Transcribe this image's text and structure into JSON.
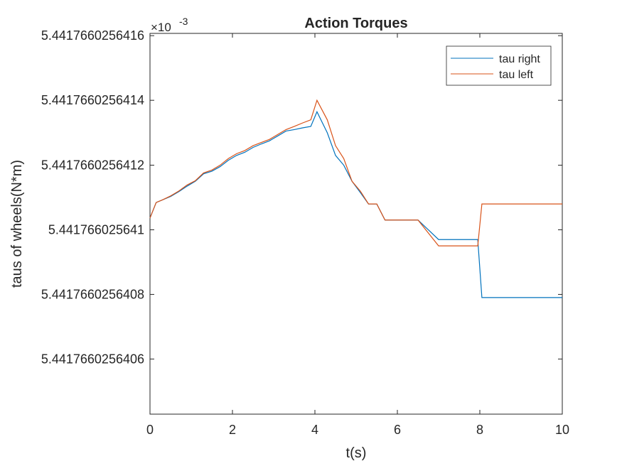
{
  "chart_data": {
    "type": "line",
    "title": "Action Torques",
    "xlabel": "t(s)",
    "ylabel": "taus of wheels(N*m)",
    "exponent_label": "×10",
    "exponent_power": "-3",
    "xlim": [
      0,
      10
    ],
    "xticks": [
      0,
      2,
      4,
      6,
      8,
      10
    ],
    "xtick_labels": [
      "0",
      "2",
      "4",
      "6",
      "8",
      "10"
    ],
    "ylim": [
      5.44176602564043,
      5.441766025641607
    ],
    "yticks": [
      5.4417660256406,
      5.4417660256408,
      5.441766025641,
      5.4417660256412,
      5.4417660256414,
      5.4417660256416
    ],
    "ytick_labels": [
      "5.4417660256406",
      "5.4417660256408",
      "5.441766025641",
      "5.4417660256412",
      "5.4417660256414",
      "5.4417660256416"
    ],
    "grid": false,
    "legend_position": "top-right",
    "series": [
      {
        "name": "tau right",
        "color": "#0072BD",
        "x": [
          0,
          0.15,
          0.3,
          0.5,
          0.7,
          0.9,
          1.1,
          1.3,
          1.5,
          1.7,
          1.9,
          2.1,
          2.3,
          2.5,
          2.7,
          2.9,
          3.1,
          3.3,
          3.5,
          3.7,
          3.9,
          4.05,
          4.3,
          4.5,
          4.7,
          4.9,
          5.1,
          5.3,
          5.5,
          5.7,
          6.0,
          6.5,
          7.0,
          7.5,
          7.95,
          8.05,
          8.5,
          9.0,
          9.5,
          10.0
        ],
        "y": [
          5.441766025641036,
          5.441766025641084,
          5.441766025641092,
          5.441766025641103,
          5.441766025641118,
          5.441766025641135,
          5.44176602564115,
          5.441766025641173,
          5.441766025641181,
          5.441766025641195,
          5.441766025641215,
          5.44176602564123,
          5.44176602564124,
          5.441766025641255,
          5.441766025641265,
          5.441766025641275,
          5.44176602564129,
          5.441766025641305,
          5.44176602564131,
          5.441766025641315,
          5.44176602564132,
          5.441766025641365,
          5.4417660256413,
          5.44176602564123,
          5.4417660256412,
          5.44176602564115,
          5.441766025641115,
          5.44176602564108,
          5.44176602564108,
          5.44176602564103,
          5.44176602564103,
          5.44176602564103,
          5.44176602564097,
          5.44176602564097,
          5.44176602564097,
          5.44176602564079,
          5.44176602564079,
          5.44176602564079,
          5.44176602564079,
          5.44176602564079
        ]
      },
      {
        "name": "tau left",
        "color": "#D95319",
        "x": [
          0,
          0.15,
          0.3,
          0.5,
          0.7,
          0.9,
          1.1,
          1.3,
          1.5,
          1.7,
          1.9,
          2.1,
          2.3,
          2.5,
          2.7,
          2.9,
          3.1,
          3.3,
          3.5,
          3.7,
          3.9,
          4.05,
          4.3,
          4.5,
          4.7,
          4.9,
          5.1,
          5.3,
          5.5,
          5.7,
          6.0,
          6.5,
          7.0,
          7.5,
          7.95,
          8.05,
          8.5,
          9.0,
          9.5,
          10.0
        ],
        "y": [
          5.441766025641036,
          5.441766025641084,
          5.441766025641092,
          5.441766025641105,
          5.44176602564112,
          5.441766025641138,
          5.441766025641152,
          5.441766025641176,
          5.441766025641185,
          5.4417660256412,
          5.44176602564122,
          5.441766025641235,
          5.441766025641245,
          5.44176602564126,
          5.44176602564127,
          5.44176602564128,
          5.441766025641295,
          5.44176602564131,
          5.44176602564132,
          5.44176602564133,
          5.44176602564134,
          5.4417660256414,
          5.44176602564134,
          5.44176602564126,
          5.44176602564122,
          5.44176602564115,
          5.44176602564112,
          5.44176602564108,
          5.44176602564108,
          5.44176602564103,
          5.44176602564103,
          5.44176602564103,
          5.44176602564095,
          5.44176602564095,
          5.44176602564095,
          5.44176602564108,
          5.44176602564108,
          5.44176602564108,
          5.44176602564108,
          5.44176602564108
        ]
      }
    ]
  }
}
